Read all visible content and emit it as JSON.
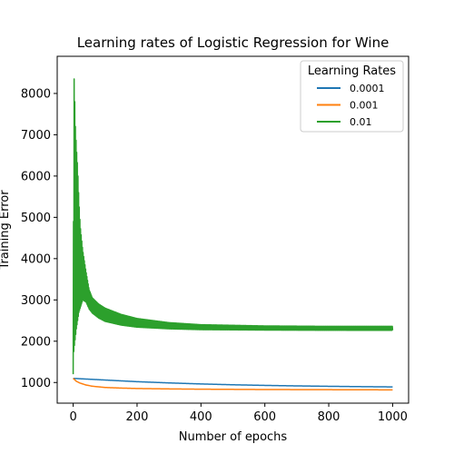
{
  "chart_data": {
    "type": "line",
    "title": "Learning rates of Logistic Regression for Wine",
    "xlabel": "Number of epochs",
    "ylabel": "Training Error",
    "xlim": [
      -50,
      1050
    ],
    "ylim": [
      500,
      8900
    ],
    "xticks": [
      0,
      200,
      400,
      600,
      800,
      1000
    ],
    "yticks": [
      1000,
      2000,
      3000,
      4000,
      5000,
      6000,
      7000,
      8000
    ],
    "grid": false,
    "legend": {
      "title": "Learning Rates",
      "placement": "top-right"
    },
    "series": [
      {
        "name": "0.0001",
        "color": "#1f77b4",
        "model": "smooth",
        "x": [
          0,
          50,
          100,
          150,
          200,
          300,
          400,
          500,
          600,
          700,
          800,
          900,
          1000
        ],
        "y": [
          1100,
          1080,
          1060,
          1040,
          1020,
          990,
          965,
          945,
          930,
          918,
          908,
          900,
          893
        ]
      },
      {
        "name": "0.001",
        "color": "#ff7f0e",
        "model": "smooth",
        "x": [
          0,
          10,
          20,
          40,
          60,
          100,
          150,
          200,
          300,
          400,
          600,
          800,
          1000
        ],
        "y": [
          1100,
          1030,
          990,
          940,
          910,
          880,
          865,
          855,
          845,
          838,
          830,
          826,
          822
        ]
      },
      {
        "name": "0.01",
        "color": "#2ca02c",
        "model": "oscillating",
        "x": [
          0,
          2,
          4,
          7,
          10,
          14,
          18,
          22,
          30,
          40,
          50,
          60,
          80,
          100,
          150,
          200,
          300,
          400,
          600,
          800,
          1000
        ],
        "upper": [
          1200,
          8600,
          8100,
          7200,
          6700,
          6200,
          5400,
          4800,
          4200,
          3700,
          3250,
          3050,
          2900,
          2800,
          2650,
          2550,
          2450,
          2400,
          2370,
          2360,
          2360
        ],
        "lower": [
          1200,
          1750,
          1900,
          2100,
          2300,
          2500,
          2700,
          2800,
          3000,
          2950,
          2780,
          2680,
          2560,
          2480,
          2390,
          2340,
          2300,
          2280,
          2270,
          2265,
          2265
        ]
      }
    ]
  }
}
